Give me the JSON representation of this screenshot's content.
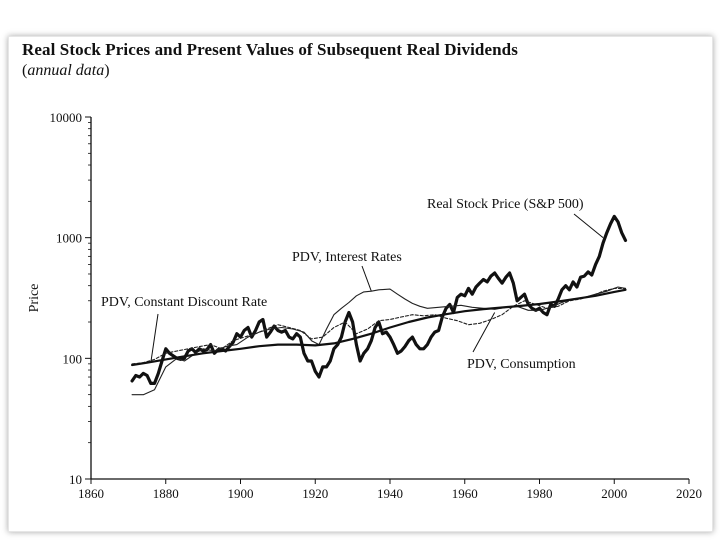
{
  "chart_data": {
    "type": "line",
    "title": "Real Stock Prices and Present Values of Subsequent Real Dividends",
    "subtitle_open": "(",
    "subtitle_italic": "annual data",
    "subtitle_close": ")",
    "xlabel": "",
    "ylabel": "Price",
    "y_scale": "log",
    "xlim": [
      1860,
      2020
    ],
    "ylim": [
      10,
      10000
    ],
    "x_ticks": [
      "1860",
      "1880",
      "1900",
      "1920",
      "1940",
      "1960",
      "1980",
      "2000",
      "2020"
    ],
    "y_ticks": [
      "10",
      "100",
      "1000",
      "10000"
    ],
    "grid": false,
    "legend": "none",
    "series": [
      {
        "name": "Real Stock Price (S&P 500)",
        "style": "thick",
        "color": "#111111",
        "x": [
          1871,
          1872,
          1873,
          1874,
          1875,
          1876,
          1877,
          1878,
          1879,
          1880,
          1881,
          1882,
          1883,
          1884,
          1885,
          1886,
          1887,
          1888,
          1889,
          1890,
          1891,
          1892,
          1893,
          1894,
          1895,
          1896,
          1897,
          1898,
          1899,
          1900,
          1901,
          1902,
          1903,
          1904,
          1905,
          1906,
          1907,
          1908,
          1909,
          1910,
          1911,
          1912,
          1913,
          1914,
          1915,
          1916,
          1917,
          1918,
          1919,
          1920,
          1921,
          1922,
          1923,
          1924,
          1925,
          1926,
          1927,
          1928,
          1929,
          1930,
          1931,
          1932,
          1933,
          1934,
          1935,
          1936,
          1937,
          1938,
          1939,
          1940,
          1941,
          1942,
          1943,
          1944,
          1945,
          1946,
          1947,
          1948,
          1949,
          1950,
          1951,
          1952,
          1953,
          1954,
          1955,
          1956,
          1957,
          1958,
          1959,
          1960,
          1961,
          1962,
          1963,
          1964,
          1965,
          1966,
          1967,
          1968,
          1969,
          1970,
          1971,
          1972,
          1973,
          1974,
          1975,
          1976,
          1977,
          1978,
          1979,
          1980,
          1981,
          1982,
          1983,
          1984,
          1985,
          1986,
          1987,
          1988,
          1989,
          1990,
          1991,
          1992,
          1993,
          1994,
          1995,
          1996,
          1997,
          1998,
          1999,
          2000,
          2001,
          2002,
          2003
        ],
        "y": [
          65,
          72,
          70,
          75,
          72,
          62,
          62,
          75,
          95,
          120,
          110,
          105,
          100,
          98,
          100,
          115,
          120,
          112,
          120,
          115,
          118,
          130,
          110,
          118,
          120,
          115,
          125,
          135,
          160,
          150,
          170,
          180,
          150,
          170,
          200,
          210,
          150,
          165,
          185,
          170,
          165,
          170,
          150,
          145,
          160,
          150,
          110,
          95,
          95,
          78,
          70,
          85,
          85,
          95,
          120,
          130,
          150,
          200,
          240,
          200,
          130,
          95,
          110,
          120,
          140,
          180,
          200,
          160,
          165,
          150,
          130,
          110,
          115,
          125,
          140,
          150,
          130,
          120,
          120,
          130,
          150,
          165,
          170,
          220,
          260,
          280,
          240,
          320,
          340,
          330,
          380,
          340,
          390,
          420,
          450,
          430,
          480,
          510,
          460,
          420,
          470,
          510,
          420,
          300,
          320,
          340,
          280,
          260,
          250,
          260,
          240,
          230,
          280,
          270,
          310,
          370,
          400,
          370,
          430,
          390,
          470,
          480,
          520,
          490,
          600,
          700,
          900,
          1100,
          1300,
          1500,
          1350,
          1100,
          950
        ]
      },
      {
        "name": "PDV, Interest Rates",
        "style": "thin",
        "color": "#222222",
        "x": [
          1871,
          1874,
          1877,
          1880,
          1883,
          1885,
          1888,
          1890,
          1893,
          1896,
          1899,
          1902,
          1905,
          1908,
          1911,
          1914,
          1917,
          1919,
          1921,
          1923,
          1925,
          1927,
          1929,
          1931,
          1933,
          1935,
          1937,
          1940,
          1942,
          1944,
          1946,
          1948,
          1950,
          1953,
          1956,
          1959,
          1962,
          1965,
          1968,
          1971,
          1974,
          1977,
          1980,
          1983,
          1986,
          1989,
          1992,
          1995,
          1998,
          2001,
          2003
        ],
        "y": [
          50,
          50,
          55,
          85,
          100,
          95,
          110,
          120,
          115,
          125,
          130,
          150,
          165,
          175,
          180,
          175,
          165,
          140,
          130,
          175,
          230,
          260,
          290,
          330,
          355,
          360,
          370,
          375,
          340,
          310,
          285,
          270,
          260,
          265,
          270,
          275,
          265,
          260,
          255,
          265,
          270,
          250,
          250,
          265,
          290,
          310,
          320,
          340,
          360,
          390,
          380
        ]
      },
      {
        "name": "PDV, Consumption",
        "style": "dashed",
        "color": "#222222",
        "x": [
          1871,
          1874,
          1877,
          1880,
          1883,
          1886,
          1889,
          1892,
          1895,
          1898,
          1901,
          1904,
          1907,
          1910,
          1913,
          1916,
          1919,
          1922,
          1925,
          1928,
          1931,
          1934,
          1937,
          1940,
          1943,
          1946,
          1949,
          1952,
          1955,
          1958,
          1961,
          1964,
          1967,
          1970,
          1973,
          1976,
          1979,
          1982,
          1985,
          1988,
          1991,
          1994,
          1997,
          2000,
          2003
        ],
        "y": [
          90,
          92,
          98,
          110,
          115,
          120,
          125,
          130,
          120,
          140,
          150,
          160,
          175,
          190,
          180,
          170,
          145,
          150,
          180,
          200,
          160,
          175,
          205,
          210,
          220,
          230,
          225,
          230,
          215,
          205,
          190,
          195,
          210,
          230,
          270,
          300,
          280,
          260,
          270,
          300,
          310,
          330,
          360,
          380,
          380
        ]
      },
      {
        "name": "PDV, Constant Discount Rate",
        "style": "medium",
        "color": "#111111",
        "x": [
          1871,
          1875,
          1880,
          1885,
          1890,
          1895,
          1900,
          1905,
          1910,
          1915,
          1920,
          1925,
          1930,
          1935,
          1940,
          1945,
          1950,
          1955,
          1960,
          1965,
          1970,
          1975,
          1980,
          1985,
          1990,
          1995,
          2000,
          2003
        ],
        "y": [
          88,
          92,
          98,
          104,
          110,
          115,
          120,
          126,
          130,
          130,
          128,
          133,
          145,
          160,
          180,
          200,
          218,
          232,
          246,
          256,
          264,
          272,
          282,
          296,
          312,
          330,
          355,
          370
        ]
      }
    ],
    "annotations": [
      {
        "text": "Real Stock Price (S&P 500)",
        "series": 0,
        "pointer": [
          1997,
          1000
        ],
        "anchor": "upper-left"
      },
      {
        "text": "PDV, Interest Rates",
        "series": 1,
        "pointer": [
          1935,
          360
        ],
        "anchor": "above"
      },
      {
        "text": "PDV, Constant Discount Rate",
        "series": 3,
        "pointer": [
          1876,
          92
        ],
        "anchor": "upper-left"
      },
      {
        "text": "PDV, Consumption",
        "series": 2,
        "pointer": [
          1968,
          240
        ],
        "anchor": "lower-right"
      }
    ]
  }
}
